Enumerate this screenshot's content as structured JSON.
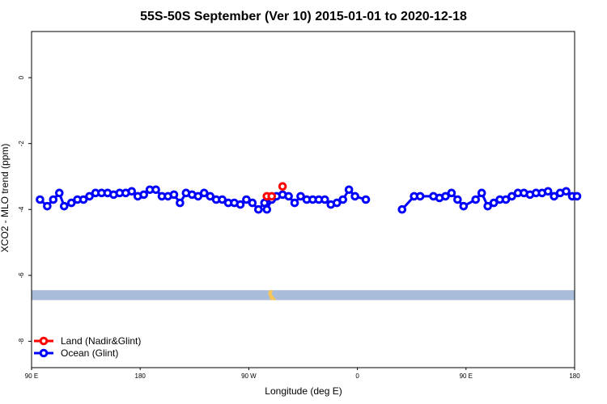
{
  "chart_data": {
    "type": "scatter",
    "title": "55S-50S September (Ver 10)   2015-01-01 to 2020-12-18",
    "xlabel": "Longitude (deg E)",
    "ylabel": "XCO2 - MLO trend (ppm)",
    "x_ticks": [
      {
        "value": 90,
        "label": "90 E"
      },
      {
        "value": 180,
        "label": "180"
      },
      {
        "value": 270,
        "label": "90 W"
      },
      {
        "value": 360,
        "label": "0"
      },
      {
        "value": 450,
        "label": "90 E"
      },
      {
        "value": 540,
        "label": "180"
      }
    ],
    "y_ticks": [
      {
        "value": 0,
        "label": "0"
      },
      {
        "value": -2,
        "label": "-2"
      },
      {
        "value": -4,
        "label": "-4"
      },
      {
        "value": -6,
        "label": "-6"
      },
      {
        "value": -8,
        "label": "-8"
      }
    ],
    "xlim": [
      90,
      540
    ],
    "ylim": [
      -8.8,
      1.4
    ],
    "legend_position": "bottom-left",
    "series": [
      {
        "name": "Land (Nadir&Glint)",
        "color": "#ff0000",
        "x": [
          285,
          289,
          298
        ],
        "y": [
          -3.6,
          -3.6,
          -3.3
        ]
      },
      {
        "name": "Ocean (Glint)",
        "color": "#0000ff",
        "x": [
          97,
          103,
          108,
          113,
          117,
          123,
          128,
          133,
          138,
          143,
          148,
          153,
          158,
          163,
          168,
          173,
          178,
          183,
          188,
          193,
          198,
          203,
          208,
          213,
          218,
          223,
          228,
          233,
          238,
          243,
          248,
          253,
          258,
          263,
          268,
          273,
          278,
          283,
          285,
          289,
          293,
          298,
          303,
          308,
          313,
          318,
          323,
          328,
          333,
          338,
          343,
          348,
          353,
          358,
          367,
          397,
          407,
          412,
          423,
          428,
          433,
          438,
          443,
          448,
          458,
          463,
          468,
          473,
          478,
          483,
          488,
          493,
          498,
          503,
          508,
          513,
          518,
          523,
          528,
          533,
          538,
          542
        ],
        "y": [
          -3.7,
          -3.9,
          -3.7,
          -3.5,
          -3.9,
          -3.8,
          -3.7,
          -3.7,
          -3.6,
          -3.5,
          -3.5,
          -3.5,
          -3.55,
          -3.5,
          -3.5,
          -3.45,
          -3.6,
          -3.55,
          -3.4,
          -3.4,
          -3.6,
          -3.6,
          -3.55,
          -3.8,
          -3.5,
          -3.55,
          -3.6,
          -3.5,
          -3.6,
          -3.7,
          -3.7,
          -3.8,
          -3.8,
          -3.85,
          -3.7,
          -3.8,
          -4.0,
          -3.8,
          -4.0,
          -3.7,
          -3.6,
          -3.55,
          -3.6,
          -3.8,
          -3.6,
          -3.7,
          -3.7,
          -3.7,
          -3.7,
          -3.85,
          -3.8,
          -3.7,
          -3.4,
          -3.6,
          -3.7,
          -4.0,
          -3.6,
          -3.6,
          -3.6,
          -3.65,
          -3.6,
          -3.5,
          -3.7,
          -3.9,
          -3.7,
          -3.5,
          -3.9,
          -3.8,
          -3.7,
          -3.7,
          -3.6,
          -3.5,
          -3.5,
          -3.55,
          -3.5,
          -3.5,
          -3.45,
          -3.6,
          -3.5,
          -3.45,
          -3.6,
          -3.6
        ],
        "connect_gap": 12
      }
    ],
    "grid": false,
    "map_strip": {
      "y_top": -6.45,
      "y_bottom": -6.75,
      "sea_color": "#a9bcd9",
      "land_color": "#f5c65e"
    }
  }
}
